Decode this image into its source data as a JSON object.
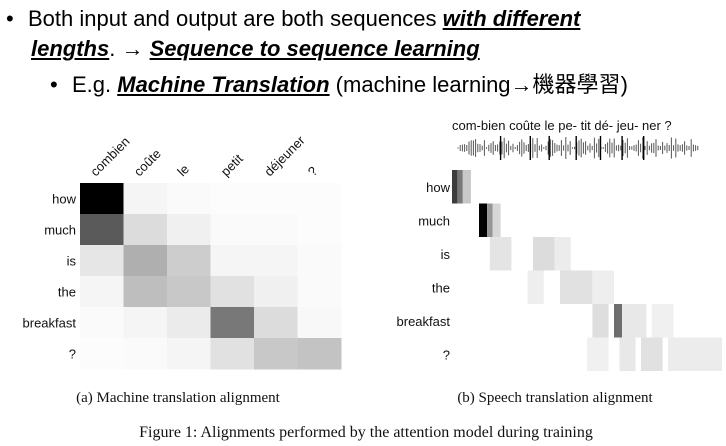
{
  "slide": {
    "bullet1": {
      "part1": "Both input and output are both sequences ",
      "emph1": "with different",
      "emph1b": "lengths",
      "part2": ". → ",
      "emph2": "Sequence to sequence learning"
    },
    "bullet2": {
      "prefix": "E.g. ",
      "emph": "Machine Translation",
      "suffix": " (machine learning→",
      "suffix_zh": "機器學習",
      "suffix_end": ")"
    }
  },
  "figure": {
    "caption": "Figure 1: Alignments performed by the attention model during training",
    "panel_a": {
      "caption": "(a) Machine translation alignment",
      "source_tokens": [
        "combien",
        "coûte",
        "le",
        "petit",
        "déjeuner",
        "?"
      ],
      "target_tokens": [
        "how",
        "much",
        "is",
        "the",
        "breakfast",
        "?"
      ],
      "attention_gray": [
        [
          0,
          245,
          250,
          252,
          252,
          252
        ],
        [
          90,
          220,
          240,
          250,
          250,
          252
        ],
        [
          230,
          175,
          205,
          245,
          245,
          250
        ],
        [
          245,
          190,
          200,
          225,
          240,
          250
        ],
        [
          250,
          245,
          235,
          120,
          220,
          248
        ],
        [
          252,
          250,
          245,
          225,
          200,
          195
        ]
      ]
    },
    "panel_b": {
      "caption": "(b) Speech translation alignment",
      "audio_segments": "com-bien coûte le   pe-  tit   dé- jeu- ner ?",
      "target_tokens": [
        "how",
        "much",
        "is",
        "the",
        "breakfast",
        "?"
      ],
      "attention_bands": [
        [
          [
            0,
            0.02,
            60
          ],
          [
            0.02,
            0.04,
            120
          ],
          [
            0.04,
            0.07,
            200
          ]
        ],
        [
          [
            0.1,
            0.13,
            0
          ],
          [
            0.13,
            0.15,
            150
          ],
          [
            0.15,
            0.18,
            215
          ]
        ],
        [
          [
            0.14,
            0.22,
            228
          ],
          [
            0.3,
            0.38,
            220
          ],
          [
            0.38,
            0.44,
            236
          ]
        ],
        [
          [
            0.28,
            0.34,
            238
          ],
          [
            0.4,
            0.52,
            225
          ],
          [
            0.52,
            0.6,
            238
          ]
        ],
        [
          [
            0.52,
            0.58,
            222
          ],
          [
            0.6,
            0.63,
            110
          ],
          [
            0.63,
            0.72,
            232
          ],
          [
            0.74,
            0.82,
            240
          ]
        ],
        [
          [
            0.5,
            0.58,
            240
          ],
          [
            0.62,
            0.68,
            232
          ],
          [
            0.7,
            0.78,
            225
          ],
          [
            0.8,
            1.0,
            236
          ]
        ]
      ]
    }
  }
}
